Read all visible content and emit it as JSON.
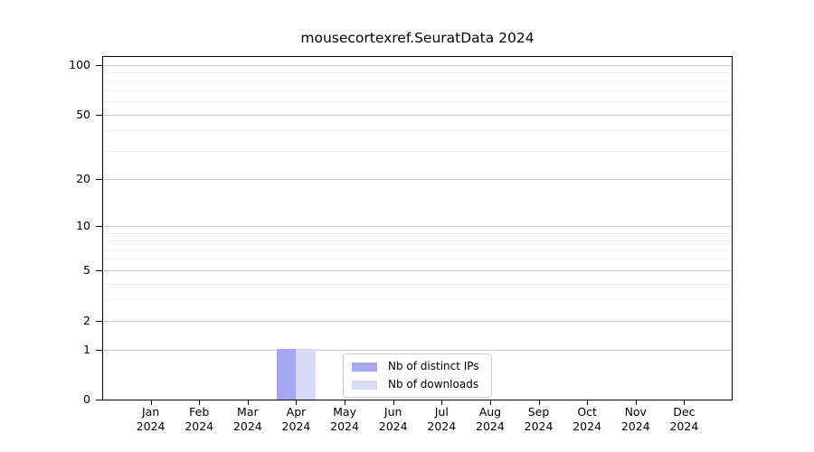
{
  "figure": {
    "title": "mousecortexref.SeuratData 2024"
  },
  "chart_data": {
    "type": "bar",
    "title": "mousecortexref.SeuratData 2024",
    "categories": [
      {
        "month": "Jan",
        "year": "2024"
      },
      {
        "month": "Feb",
        "year": "2024"
      },
      {
        "month": "Mar",
        "year": "2024"
      },
      {
        "month": "Apr",
        "year": "2024"
      },
      {
        "month": "May",
        "year": "2024"
      },
      {
        "month": "Jun",
        "year": "2024"
      },
      {
        "month": "Jul",
        "year": "2024"
      },
      {
        "month": "Aug",
        "year": "2024"
      },
      {
        "month": "Sep",
        "year": "2024"
      },
      {
        "month": "Oct",
        "year": "2024"
      },
      {
        "month": "Nov",
        "year": "2024"
      },
      {
        "month": "Dec",
        "year": "2024"
      }
    ],
    "series": [
      {
        "name": "Nb of distinct IPs",
        "color": "#a6a6f2",
        "values": [
          0,
          0,
          0,
          1,
          0,
          0,
          0,
          0,
          0,
          0,
          0,
          0
        ]
      },
      {
        "name": "Nb of downloads",
        "color": "#d9d9f8",
        "values": [
          0,
          0,
          0,
          1,
          0,
          0,
          0,
          0,
          0,
          0,
          0,
          0
        ]
      }
    ],
    "y_scale": "log1p",
    "y_ticks": [
      0,
      1,
      2,
      5,
      10,
      20,
      50,
      100
    ],
    "y_minor_gridlines": [
      3,
      4,
      6,
      7,
      8,
      9,
      30,
      40,
      60,
      70,
      80,
      90
    ],
    "ylim": [
      0,
      113
    ],
    "grid": true,
    "legend_position": "lower center"
  }
}
